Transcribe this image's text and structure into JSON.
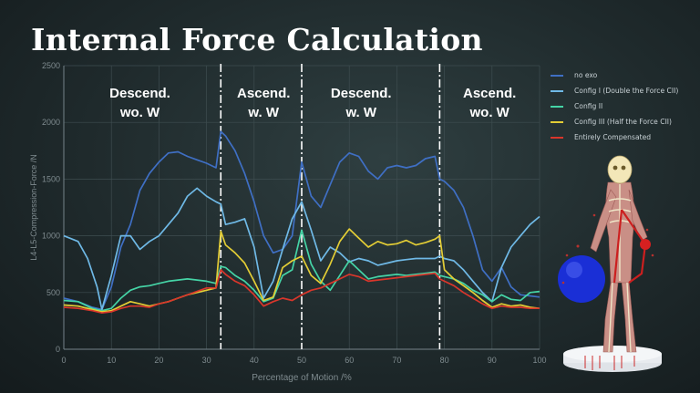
{
  "slide": {
    "title": "Internal Force Calculation"
  },
  "chart_data": {
    "type": "line",
    "xlabel": "Percentage of Motion /%",
    "ylabel": "L4-L5-Compression-Force /N",
    "xlim": [
      0,
      100
    ],
    "ylim": [
      0,
      2500
    ],
    "xticks": [
      "0",
      "10",
      "20",
      "30",
      "40",
      "50",
      "60",
      "70",
      "80",
      "90",
      "100"
    ],
    "yticks": [
      "0",
      "500",
      "1000",
      "1500",
      "2000",
      "2500"
    ],
    "grid": true,
    "legend_position": "right",
    "phase_boundaries": [
      33,
      50,
      79
    ],
    "phases": [
      {
        "line1": "Descend.",
        "line2": "wo. W",
        "x_center": 16
      },
      {
        "line1": "Ascend.",
        "line2": "w. W",
        "x_center": 42
      },
      {
        "line1": "Descend.",
        "line2": "w. W",
        "x_center": 62.5
      },
      {
        "line1": "Ascend.",
        "line2": "wo. W",
        "x_center": 89.5
      }
    ],
    "series": [
      {
        "name": "no exo",
        "color": "#3f6fc4",
        "x": [
          0,
          3,
          6,
          8,
          10,
          12,
          14,
          16,
          18,
          20,
          22,
          24,
          26,
          28,
          30,
          32,
          33,
          34,
          36,
          38,
          40,
          42,
          44,
          46,
          48,
          50,
          52,
          54,
          56,
          58,
          60,
          62,
          64,
          66,
          68,
          70,
          72,
          74,
          76,
          78,
          79,
          80,
          82,
          84,
          86,
          88,
          90,
          92,
          94,
          96,
          98,
          100
        ],
        "values": [
          450,
          420,
          370,
          350,
          550,
          900,
          1100,
          1400,
          1550,
          1650,
          1730,
          1740,
          1700,
          1670,
          1640,
          1600,
          1920,
          1880,
          1750,
          1550,
          1300,
          1000,
          850,
          880,
          1000,
          1650,
          1350,
          1250,
          1450,
          1650,
          1730,
          1700,
          1570,
          1500,
          1600,
          1620,
          1600,
          1620,
          1680,
          1700,
          1500,
          1480,
          1400,
          1250,
          1000,
          700,
          600,
          720,
          550,
          480,
          470,
          460
        ]
      },
      {
        "name": "Config I (Double the Force CII)",
        "color": "#6fb9e6",
        "x": [
          0,
          3,
          5,
          7,
          8,
          10,
          12,
          14,
          16,
          18,
          20,
          22,
          24,
          26,
          28,
          30,
          32,
          33,
          34,
          36,
          38,
          40,
          42,
          44,
          46,
          48,
          50,
          52,
          54,
          56,
          58,
          60,
          62,
          64,
          66,
          68,
          70,
          72,
          74,
          76,
          78,
          79,
          80,
          82,
          84,
          86,
          88,
          90,
          92,
          94,
          96,
          98,
          100
        ],
        "values": [
          1000,
          950,
          800,
          550,
          350,
          650,
          1000,
          1000,
          880,
          950,
          1000,
          1100,
          1200,
          1350,
          1420,
          1350,
          1300,
          1280,
          1100,
          1120,
          1150,
          900,
          450,
          600,
          880,
          1150,
          1300,
          1050,
          780,
          900,
          850,
          770,
          800,
          780,
          740,
          760,
          780,
          790,
          800,
          800,
          800,
          820,
          800,
          780,
          700,
          600,
          500,
          420,
          720,
          900,
          1000,
          1100,
          1170
        ]
      },
      {
        "name": "Config II",
        "color": "#45d4a6",
        "x": [
          0,
          3,
          6,
          8,
          10,
          12,
          14,
          16,
          18,
          20,
          22,
          24,
          26,
          28,
          30,
          32,
          33,
          34,
          36,
          38,
          40,
          42,
          44,
          46,
          48,
          50,
          52,
          54,
          56,
          58,
          60,
          62,
          64,
          66,
          68,
          70,
          72,
          74,
          76,
          78,
          79,
          80,
          82,
          84,
          86,
          88,
          90,
          92,
          94,
          96,
          98,
          100
        ],
        "values": [
          430,
          420,
          360,
          340,
          360,
          450,
          520,
          550,
          560,
          580,
          600,
          610,
          620,
          610,
          600,
          580,
          730,
          720,
          650,
          600,
          520,
          420,
          450,
          650,
          700,
          1050,
          750,
          600,
          520,
          650,
          780,
          700,
          620,
          640,
          650,
          660,
          650,
          660,
          670,
          680,
          650,
          640,
          620,
          580,
          520,
          480,
          420,
          480,
          440,
          430,
          500,
          510
        ]
      },
      {
        "name": "Config III (Half the Force CII)",
        "color": "#e3cd35",
        "x": [
          0,
          3,
          6,
          8,
          10,
          12,
          14,
          16,
          18,
          20,
          22,
          24,
          26,
          28,
          30,
          32,
          33,
          34,
          36,
          38,
          40,
          42,
          44,
          46,
          48,
          50,
          52,
          54,
          56,
          58,
          60,
          62,
          64,
          66,
          68,
          70,
          72,
          74,
          76,
          78,
          79,
          80,
          82,
          84,
          86,
          88,
          90,
          92,
          94,
          96,
          98,
          100
        ],
        "values": [
          390,
          380,
          350,
          330,
          340,
          380,
          420,
          400,
          380,
          400,
          420,
          450,
          480,
          500,
          520,
          540,
          1040,
          920,
          850,
          760,
          600,
          430,
          460,
          720,
          780,
          820,
          650,
          580,
          750,
          950,
          1060,
          980,
          900,
          950,
          920,
          930,
          960,
          920,
          940,
          970,
          1000,
          700,
          620,
          560,
          500,
          430,
          370,
          400,
          380,
          390,
          370,
          360
        ]
      },
      {
        "name": "Entirely Compensated",
        "color": "#d9362b",
        "x": [
          0,
          3,
          6,
          8,
          10,
          12,
          14,
          16,
          18,
          20,
          22,
          24,
          26,
          28,
          30,
          32,
          33,
          34,
          36,
          38,
          40,
          42,
          44,
          46,
          48,
          50,
          52,
          54,
          56,
          58,
          60,
          62,
          64,
          66,
          68,
          70,
          72,
          74,
          76,
          78,
          79,
          80,
          82,
          84,
          86,
          88,
          90,
          92,
          94,
          96,
          98,
          100
        ],
        "values": [
          370,
          360,
          340,
          320,
          330,
          360,
          380,
          380,
          370,
          400,
          420,
          450,
          480,
          510,
          540,
          540,
          700,
          660,
          600,
          560,
          480,
          380,
          420,
          450,
          430,
          480,
          520,
          540,
          580,
          620,
          660,
          640,
          600,
          610,
          620,
          630,
          640,
          650,
          660,
          670,
          620,
          600,
          560,
          500,
          450,
          400,
          360,
          380,
          370,
          370,
          360,
          360
        ]
      }
    ]
  },
  "figure": {
    "description_icon": "exoskeleton-figure-icon"
  }
}
